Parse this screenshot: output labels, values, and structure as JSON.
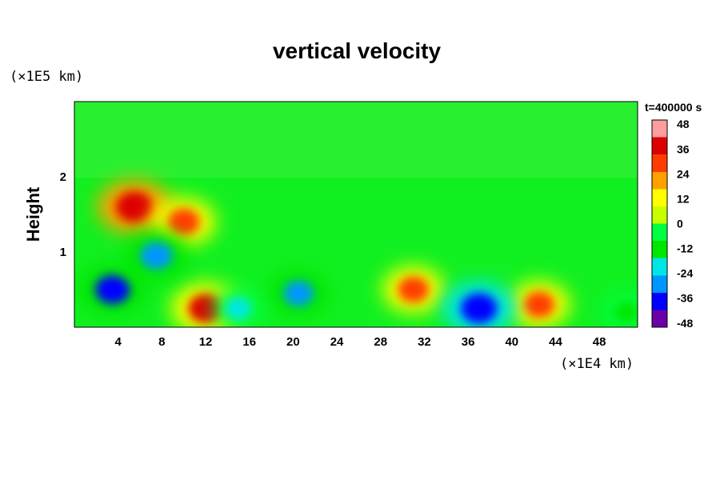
{
  "chart_data": {
    "type": "heatmap",
    "title": "vertical velocity",
    "xlabel": "",
    "ylabel": "Height",
    "x_unit": "(×1E4 km)",
    "y_unit": "(×1E5 km)",
    "time_label": "t=400000 s",
    "xlim": [
      0,
      51.5
    ],
    "ylim": [
      0,
      3
    ],
    "x_ticks": [
      4,
      8,
      12,
      16,
      20,
      24,
      28,
      32,
      36,
      40,
      44,
      48
    ],
    "y_ticks": [
      1,
      2
    ],
    "colorbar": {
      "min": -50,
      "max": 50,
      "ticks": [
        48,
        36,
        24,
        12,
        0,
        -12,
        -24,
        -36,
        -48
      ],
      "colors": [
        "#6a00a8",
        "#0000ff",
        "#0096ff",
        "#00e6e6",
        "#00e600",
        "#00ff40",
        "#c8ff00",
        "#ffff00",
        "#ffa000",
        "#ff3c00",
        "#dc0000",
        "#ff9c9c"
      ]
    },
    "features": [
      {
        "x": 5.5,
        "y": 1.6,
        "value": 40
      },
      {
        "x": 10,
        "y": 1.4,
        "value": 30
      },
      {
        "x": 12,
        "y": 0.25,
        "value": 35
      },
      {
        "x": 31,
        "y": 0.5,
        "value": 28
      },
      {
        "x": 42.5,
        "y": 0.3,
        "value": 28
      },
      {
        "x": 3.5,
        "y": 0.5,
        "value": -35
      },
      {
        "x": 7.5,
        "y": 0.95,
        "value": -30
      },
      {
        "x": 20.5,
        "y": 0.45,
        "value": -26
      },
      {
        "x": 37,
        "y": 0.25,
        "value": -38
      },
      {
        "x": 15,
        "y": 0.25,
        "value": -18
      },
      {
        "x": 50.5,
        "y": 0.2,
        "value": -15
      }
    ]
  }
}
